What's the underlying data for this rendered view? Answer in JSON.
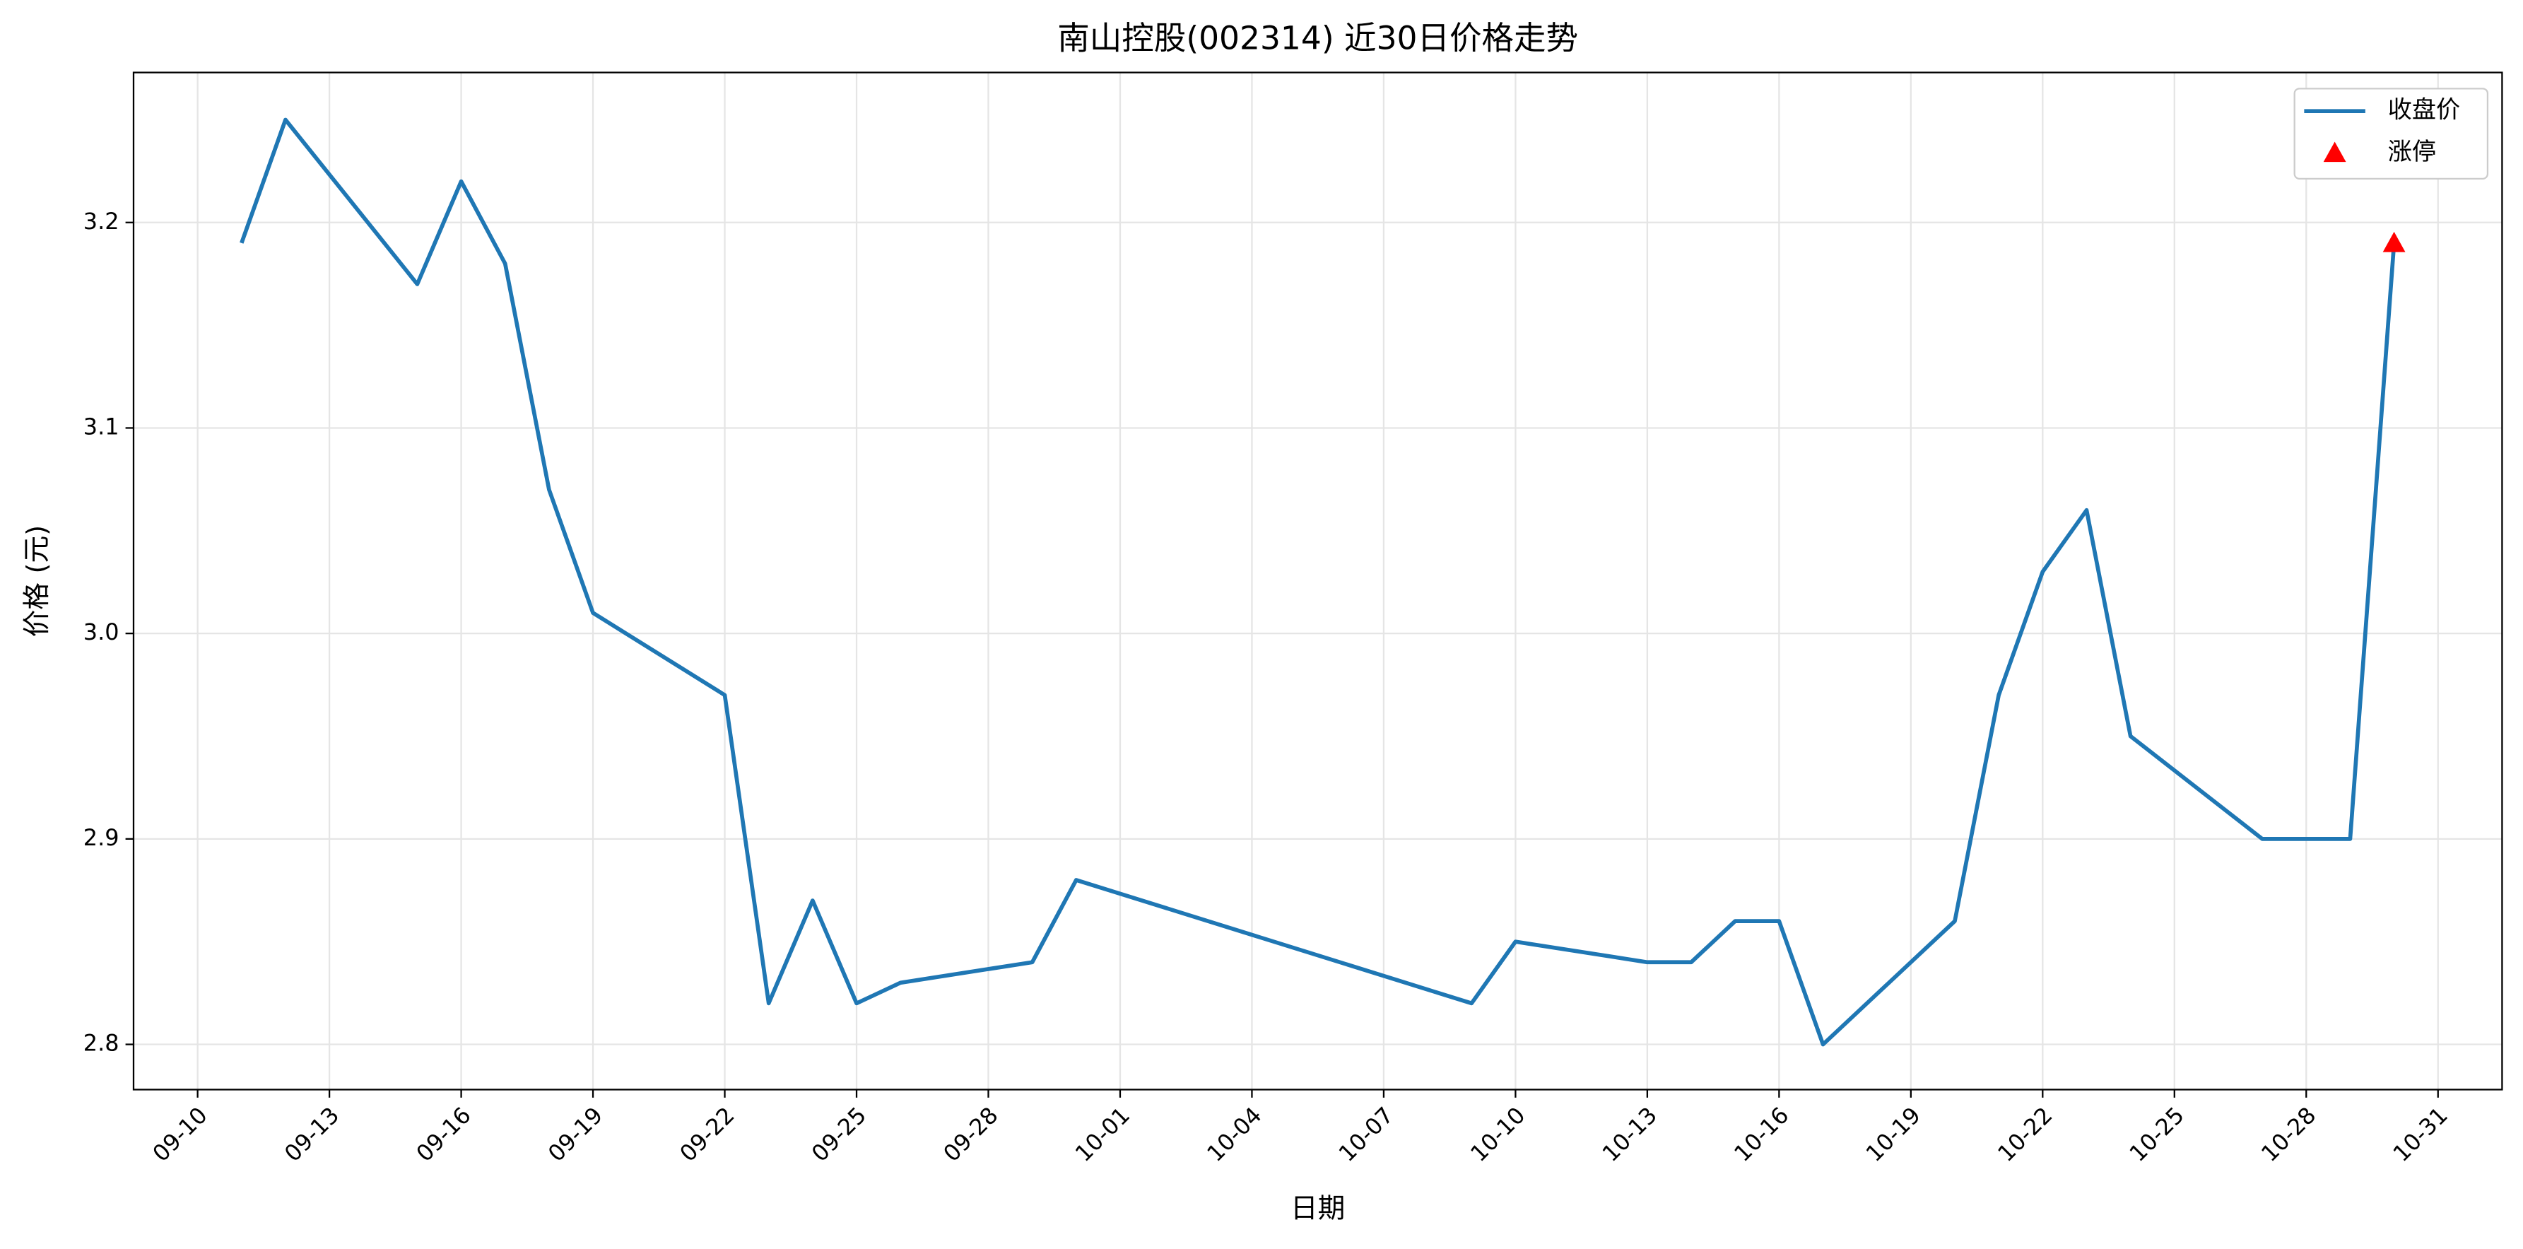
{
  "chart_data": {
    "type": "line",
    "title": "南山控股(002314) 近30日价格走势",
    "xlabel": "日期",
    "ylabel": "价格 (元)",
    "x": [
      "09-11",
      "09-12",
      "09-15",
      "09-16",
      "09-17",
      "09-18",
      "09-19",
      "09-22",
      "09-23",
      "09-24",
      "09-25",
      "09-26",
      "09-29",
      "09-30",
      "10-09",
      "10-10",
      "10-13",
      "10-14",
      "10-15",
      "10-16",
      "10-17",
      "10-20",
      "10-21",
      "10-22",
      "10-23",
      "10-24",
      "10-27",
      "10-28",
      "10-29",
      "10-30"
    ],
    "series": [
      {
        "name": "收盘价",
        "color": "#1f77b4",
        "values": [
          3.19,
          3.25,
          3.17,
          3.22,
          3.18,
          3.07,
          3.01,
          2.97,
          2.82,
          2.87,
          2.82,
          2.83,
          2.84,
          2.88,
          2.82,
          2.85,
          2.84,
          2.84,
          2.86,
          2.86,
          2.8,
          2.86,
          2.97,
          3.03,
          3.06,
          2.95,
          2.9,
          2.9,
          2.9,
          3.19
        ]
      },
      {
        "name": "涨停",
        "color": "#ff0000",
        "marker": "triangle",
        "x": [
          "10-30"
        ],
        "values": [
          3.19
        ]
      }
    ],
    "xlim": [
      "09-08 13:00",
      "11-01 11:00"
    ],
    "xticks": [
      "09-10",
      "09-13",
      "09-16",
      "09-19",
      "09-22",
      "09-25",
      "09-28",
      "10-01",
      "10-04",
      "10-07",
      "10-10",
      "10-13",
      "10-16",
      "10-19",
      "10-22",
      "10-25",
      "10-28",
      "10-31"
    ],
    "ylim": [
      2.778,
      3.273
    ],
    "yticks": [
      2.8,
      2.9,
      {
        "value": 3,
        "label": "3.0"
      },
      3.1,
      3.2
    ],
    "grid": true,
    "legend": "upper right"
  }
}
